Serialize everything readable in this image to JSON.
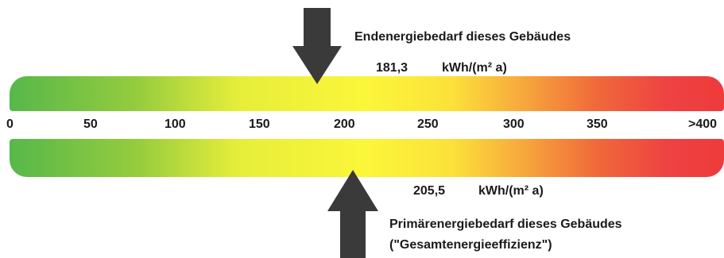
{
  "scale": {
    "ticks": [
      "0",
      "50",
      "100",
      "150",
      "200",
      "250",
      "300",
      "350",
      ">400"
    ]
  },
  "end_energy": {
    "title": "Endenergiebedarf dieses Gebäudes",
    "value": "181,3",
    "unit": "kWh/(m² a)"
  },
  "primary_energy": {
    "value": "205,5",
    "unit": "kWh/(m² a)",
    "title": "Primärenergiebedarf dieses Gebäudes",
    "subtitle": "(\"Gesamtenergieeffizienz\")"
  },
  "colors": {
    "good": "#56b84a",
    "medium": "#fbf63a",
    "bad": "#ee3b3b",
    "arrow": "#3a3a3a"
  }
}
